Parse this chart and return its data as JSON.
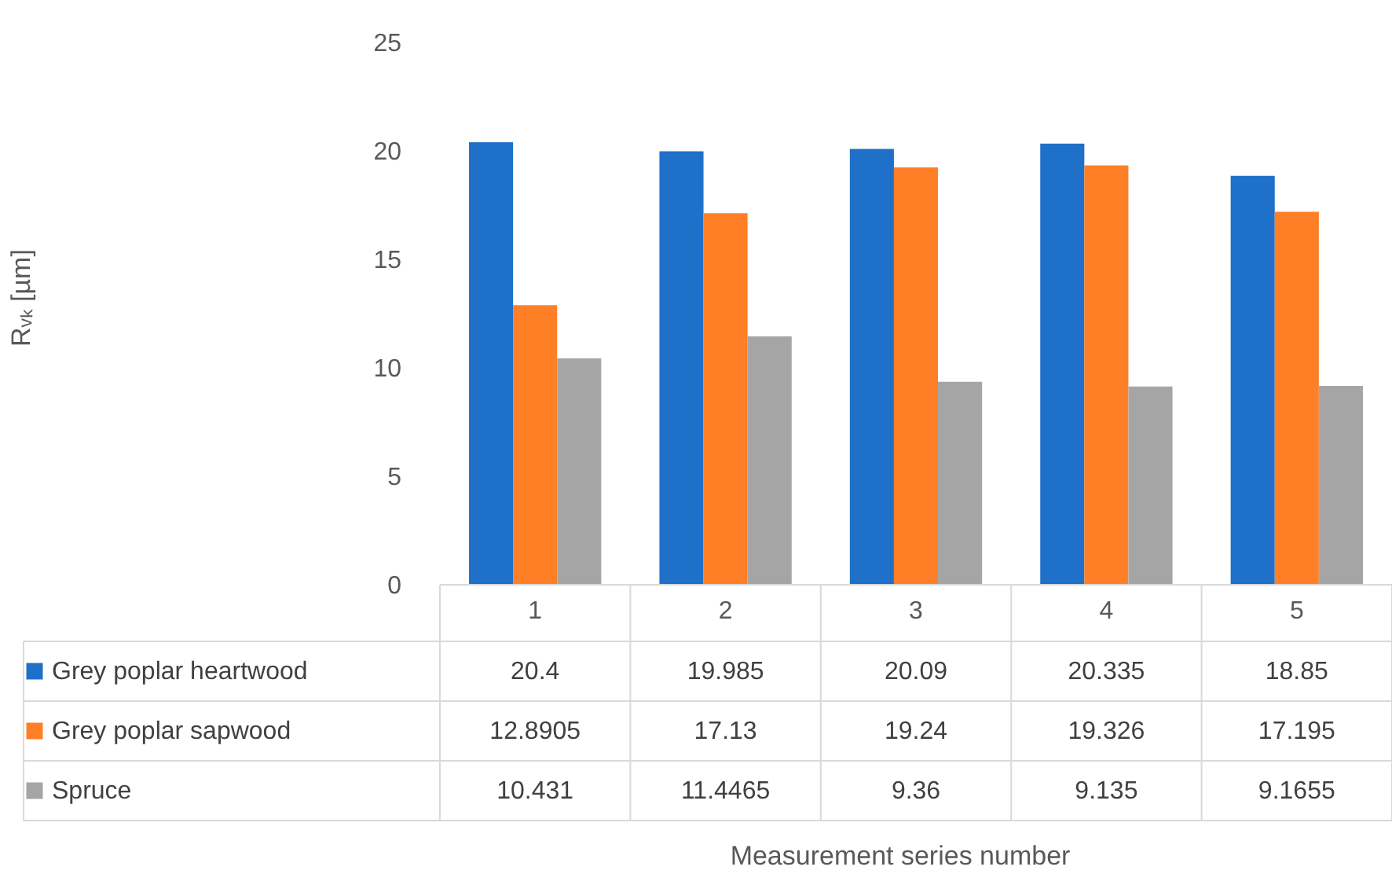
{
  "chart_data": {
    "type": "bar",
    "annotations": [
      "Rᵥₖ [µm]",
      "Measurement series number"
    ],
    "categories": [
      "1",
      "2",
      "3",
      "4",
      "5"
    ],
    "series": [
      {
        "name": "Grey poplar heartwood",
        "color": "#1f70c8",
        "values": [
          20.4,
          19.985,
          20.09,
          20.335,
          18.85
        ]
      },
      {
        "name": "Grey poplar sapwood",
        "color": "#ff7f27",
        "values": [
          12.8905,
          17.13,
          19.24,
          19.326,
          17.195
        ]
      },
      {
        "name": "Spruce",
        "color": "#a5a5a5",
        "values": [
          10.431,
          11.4465,
          9.36,
          9.135,
          9.1655
        ]
      }
    ],
    "ylim": [
      0,
      25
    ],
    "yticks": [
      0,
      5,
      10,
      15,
      20,
      25
    ],
    "grid": false,
    "data_labels": true,
    "legend": "bottom"
  }
}
